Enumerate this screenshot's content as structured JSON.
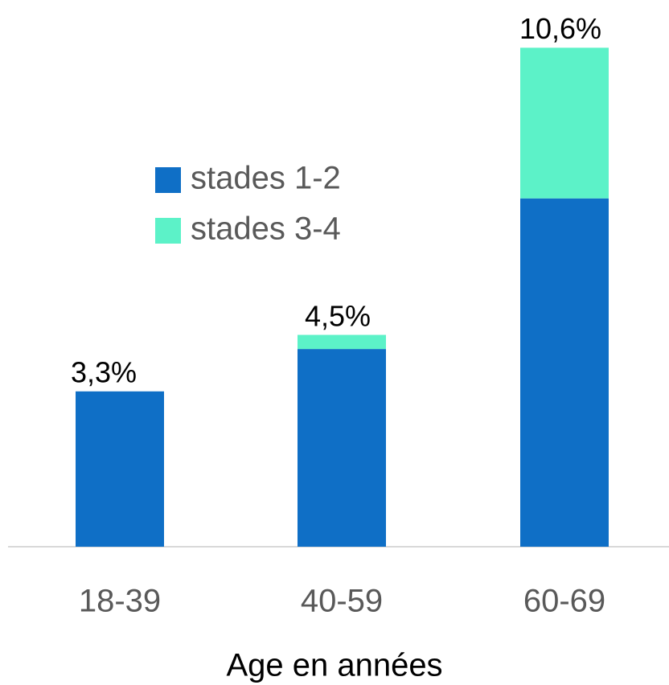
{
  "chart_data": {
    "type": "stacked-bar",
    "x_label": "Age en années",
    "categories": [
      "18-39",
      "40-59",
      "60-69"
    ],
    "series": [
      {
        "name": "stades 1-2",
        "color": "#0f6fc6",
        "values": [
          3.3,
          4.2,
          7.4
        ]
      },
      {
        "name": "stades 3-4",
        "color": "#5cf2c8",
        "values": [
          0,
          0.3,
          3.2
        ]
      }
    ],
    "totals": [
      3.3,
      4.5,
      10.6
    ],
    "total_labels": [
      "3,3%",
      "4,5%",
      "10,6%"
    ],
    "ylim": [
      0.33,
      11.5
    ],
    "legend": "left"
  }
}
